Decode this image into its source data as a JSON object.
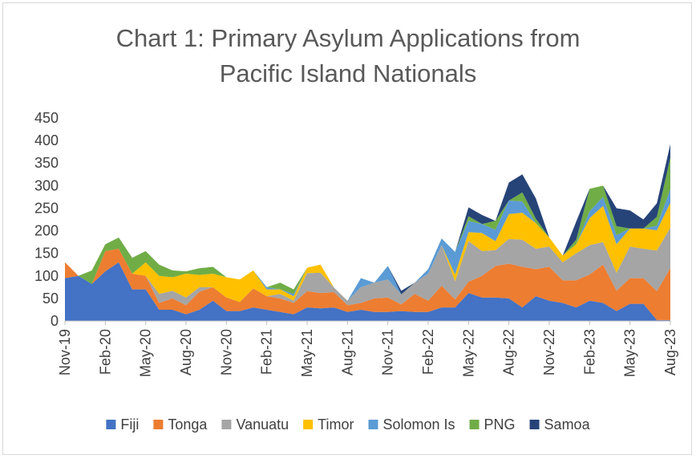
{
  "chart_data": {
    "type": "area",
    "stacked": true,
    "title_lines": [
      "Chart 1: Primary Asylum Applications from",
      "Pacific Island Nationals"
    ],
    "ylim": [
      0,
      450
    ],
    "yticks": [
      0,
      50,
      100,
      150,
      200,
      250,
      300,
      350,
      400,
      450
    ],
    "x": [
      "Nov-19",
      "Dec-19",
      "Jan-20",
      "Feb-20",
      "Mar-20",
      "Apr-20",
      "May-20",
      "Jun-20",
      "Jul-20",
      "Aug-20",
      "Sep-20",
      "Oct-20",
      "Nov-20",
      "Dec-20",
      "Jan-21",
      "Feb-21",
      "Mar-21",
      "Apr-21",
      "May-21",
      "Jun-21",
      "Jul-21",
      "Aug-21",
      "Sep-21",
      "Oct-21",
      "Nov-21",
      "Dec-21",
      "Jan-22",
      "Feb-22",
      "Mar-22",
      "Apr-22",
      "May-22",
      "Jun-22",
      "Jul-22",
      "Aug-22",
      "Sep-22",
      "Oct-22",
      "Nov-22",
      "Dec-22",
      "Jan-23",
      "Feb-23",
      "Mar-23",
      "Apr-23",
      "May-23",
      "Jun-23",
      "Jul-23",
      "Aug-23"
    ],
    "xtick_labels": [
      "Nov-19",
      "Feb-20",
      "May-20",
      "Aug-20",
      "Nov-20",
      "Feb-21",
      "May-21",
      "Aug-21",
      "Nov-21",
      "Feb-22",
      "May-22",
      "Aug-22",
      "Nov-22",
      "Feb-23",
      "May-23",
      "Aug-23"
    ],
    "grid": false,
    "legend_position": "bottom",
    "series": [
      {
        "name": "Fiji",
        "color": "#4472c4",
        "values": [
          95,
          100,
          82,
          110,
          130,
          70,
          70,
          25,
          25,
          15,
          25,
          45,
          22,
          22,
          30,
          25,
          20,
          15,
          30,
          28,
          30,
          20,
          25,
          20,
          20,
          22,
          20,
          20,
          30,
          30,
          62,
          52,
          52,
          50,
          30,
          55,
          45,
          40,
          30,
          45,
          40,
          22,
          38,
          38,
          2,
          2
        ]
      },
      {
        "name": "Tonga",
        "color": "#ed7d31",
        "values": [
          35,
          0,
          0,
          45,
          30,
          35,
          30,
          15,
          25,
          20,
          40,
          30,
          30,
          20,
          42,
          30,
          30,
          25,
          36,
          34,
          34,
          15,
          15,
          30,
          32,
          15,
          40,
          25,
          48,
          18,
          25,
          48,
          70,
          77,
          90,
          60,
          75,
          50,
          60,
          58,
          85,
          45,
          57,
          57,
          64,
          115
        ]
      },
      {
        "name": "Vanuatu",
        "color": "#a5a5a5",
        "values": [
          0,
          0,
          0,
          0,
          0,
          0,
          0,
          20,
          17,
          17,
          10,
          0,
          0,
          0,
          0,
          0,
          10,
          5,
          40,
          45,
          10,
          10,
          35,
          35,
          40,
          22,
          25,
          60,
          90,
          40,
          90,
          55,
          35,
          55,
          60,
          45,
          45,
          40,
          60,
          65,
          50,
          40,
          70,
          65,
          90,
          90
        ]
      },
      {
        "name": "Timor",
        "color": "#ffc000",
        "values": [
          0,
          0,
          0,
          0,
          0,
          0,
          30,
          40,
          30,
          53,
          27,
          30,
          45,
          50,
          40,
          15,
          10,
          10,
          12,
          18,
          0,
          0,
          0,
          0,
          0,
          0,
          0,
          0,
          0,
          15,
          20,
          40,
          20,
          55,
          60,
          57,
          20,
          15,
          20,
          60,
          80,
          63,
          40,
          45,
          45,
          55
        ]
      },
      {
        "name": "Solomon Is",
        "color": "#5b9bd5",
        "values": [
          0,
          0,
          0,
          0,
          0,
          0,
          0,
          0,
          0,
          0,
          0,
          0,
          0,
          0,
          0,
          5,
          0,
          5,
          0,
          0,
          0,
          0,
          20,
          0,
          30,
          0,
          0,
          10,
          15,
          50,
          25,
          20,
          25,
          30,
          25,
          0,
          0,
          0,
          0,
          15,
          20,
          20,
          0,
          0,
          10,
          30
        ]
      },
      {
        "name": "PNG",
        "color": "#70ad47",
        "values": [
          0,
          0,
          30,
          15,
          25,
          35,
          25,
          25,
          15,
          5,
          15,
          15,
          0,
          0,
          0,
          0,
          15,
          10,
          0,
          0,
          0,
          0,
          0,
          0,
          0,
          0,
          0,
          0,
          0,
          0,
          10,
          0,
          20,
          0,
          20,
          10,
          0,
          0,
          10,
          50,
          25,
          20,
          0,
          0,
          20,
          70
        ]
      },
      {
        "name": "Samoa",
        "color": "#264478",
        "values": [
          0,
          0,
          0,
          0,
          0,
          0,
          0,
          0,
          0,
          0,
          0,
          0,
          0,
          0,
          0,
          0,
          0,
          0,
          0,
          0,
          0,
          0,
          0,
          0,
          0,
          8,
          0,
          0,
          0,
          0,
          20,
          20,
          0,
          40,
          40,
          45,
          0,
          0,
          40,
          0,
          0,
          40,
          40,
          20,
          30,
          30
        ]
      }
    ]
  }
}
